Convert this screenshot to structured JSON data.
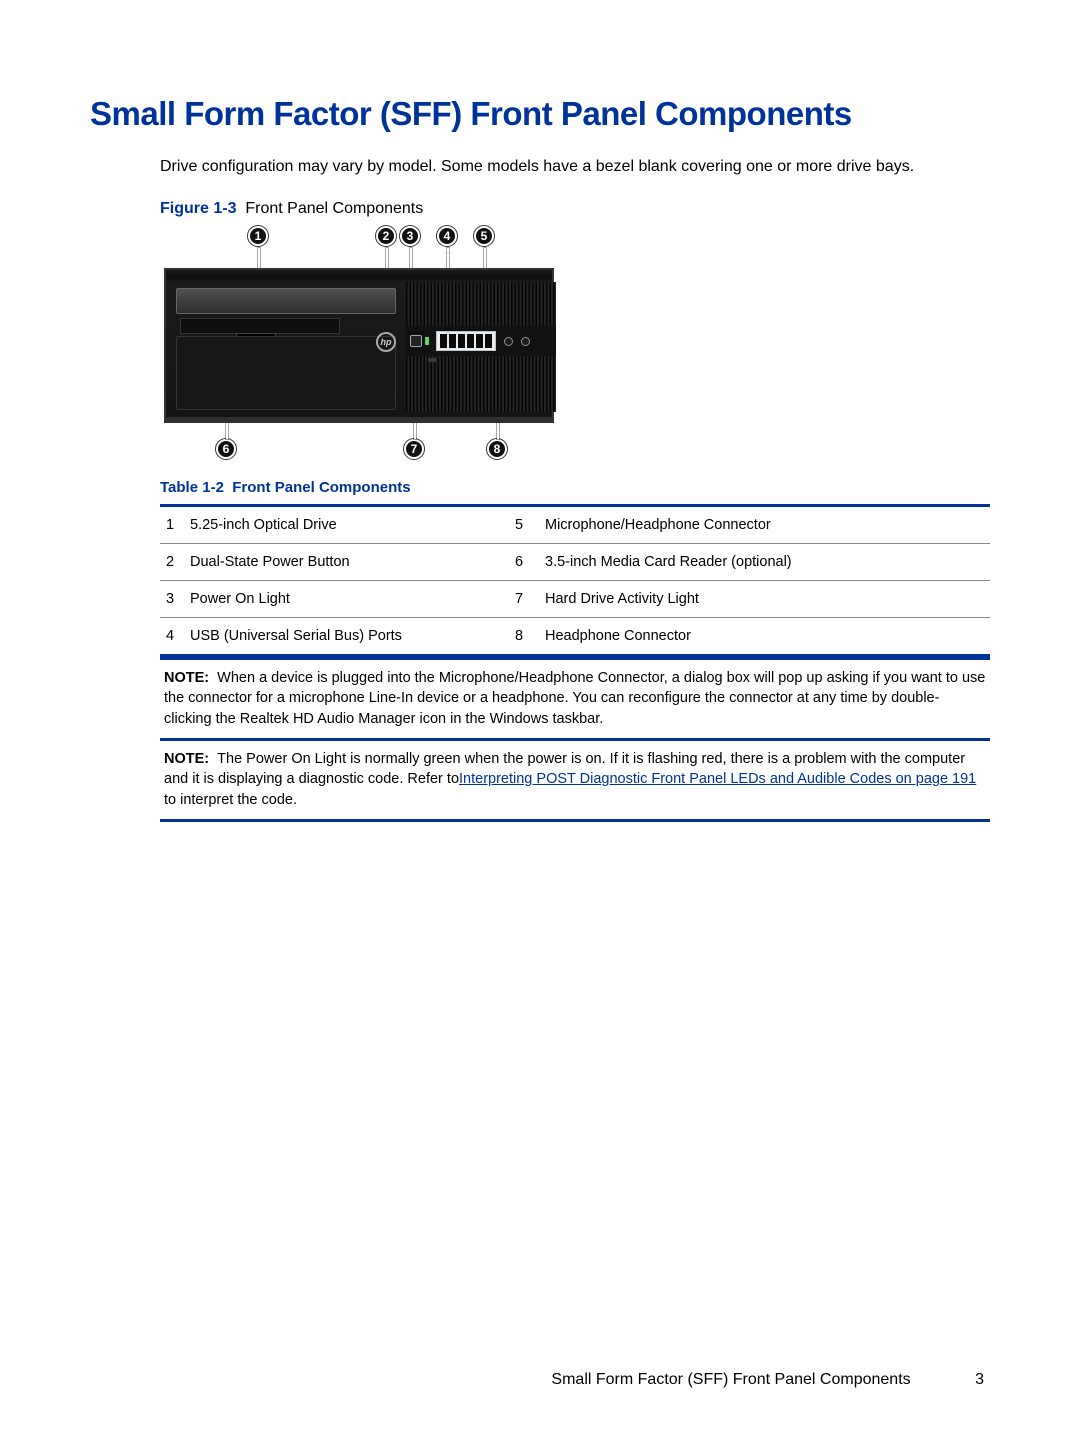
{
  "colors": {
    "accent": "#003399",
    "text": "#000000",
    "background": "#ffffff"
  },
  "heading": "Small Form Factor (SFF) Front Panel Components",
  "intro": "Drive configuration may vary by model. Some models have a bezel blank covering one or more drive bays.",
  "figure": {
    "label": "Figure 1-3",
    "caption": "Front Panel Components",
    "markers": [
      "1",
      "2",
      "3",
      "4",
      "5",
      "6",
      "7",
      "8"
    ],
    "logo_text": "hp"
  },
  "table": {
    "caption_label": "Table 1-2",
    "caption_text": "Front Panel Components",
    "rows": [
      {
        "n1": "1",
        "d1": "5.25-inch Optical Drive",
        "n2": "5",
        "d2": "Microphone/Headphone Connector"
      },
      {
        "n1": "2",
        "d1": "Dual-State Power Button",
        "n2": "6",
        "d2": "3.5-inch Media Card Reader (optional)"
      },
      {
        "n1": "3",
        "d1": "Power On Light",
        "n2": "7",
        "d2": "Hard Drive Activity Light"
      },
      {
        "n1": "4",
        "d1": "USB (Universal Serial Bus) Ports",
        "n2": "8",
        "d2": "Headphone Connector"
      }
    ]
  },
  "notes": [
    {
      "label": "NOTE:",
      "text_before": "When a device is plugged into the Microphone/Headphone Connector, a dialog box will pop up asking if you want to use the connector for a microphone Line-In device or a headphone. You can reconfigure the connector at any time by double-clicking the Realtek HD Audio Manager icon in the Windows taskbar.",
      "link_text": "",
      "text_after": ""
    },
    {
      "label": "NOTE:",
      "text_before": "The Power On Light is normally green when the power is on. If it is flashing red, there is a problem with the computer and it is displaying a diagnostic code. Refer to",
      "link_text": "Interpreting POST Diagnostic Front Panel LEDs and Audible Codes on page 191",
      "text_after": " to interpret the code."
    }
  ],
  "footer": {
    "title": "Small Form Factor (SFF) Front Panel Components",
    "page": "3"
  }
}
